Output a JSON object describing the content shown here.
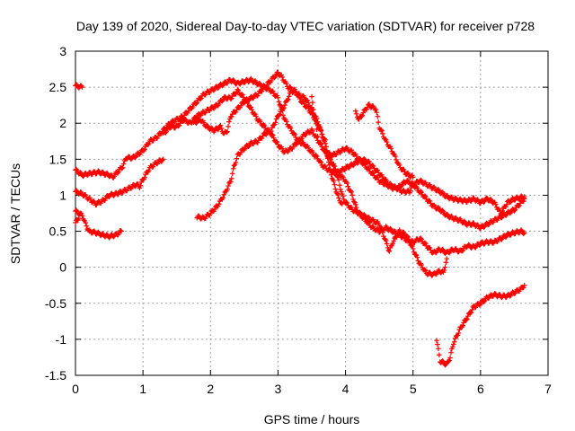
{
  "chart_data": {
    "type": "scatter",
    "title": "Day 139 of 2020, Sidereal Day-to-day VTEC variation (SDTVAR) for receiver p728",
    "xlabel": "GPS time / hours",
    "ylabel": "SDTVAR / TECUs",
    "xlim": [
      0,
      7
    ],
    "ylim": [
      -1.5,
      3
    ],
    "xticks": [
      0,
      1,
      2,
      3,
      4,
      5,
      6,
      7
    ],
    "xtick_labels": [
      "0",
      "1",
      "2",
      "3",
      "4",
      "5",
      "6",
      "7"
    ],
    "yticks": [
      -1.5,
      -1,
      -0.5,
      0,
      0.5,
      1,
      1.5,
      2,
      2.5,
      3
    ],
    "ytick_labels": [
      "-1.5",
      "-1",
      "-0.5",
      "0",
      "0.5",
      "1",
      "1.5",
      "2",
      "2.5",
      "3"
    ],
    "grid": true,
    "marker": "+",
    "color": "#ff0000",
    "series": [
      {
        "name": "trace-1",
        "points": [
          [
            0.0,
            2.52
          ],
          [
            0.1,
            2.5
          ]
        ]
      },
      {
        "name": "trace-2",
        "points": [
          [
            0.0,
            1.35
          ],
          [
            0.1,
            1.28
          ],
          [
            0.2,
            1.3
          ],
          [
            0.35,
            1.32
          ],
          [
            0.5,
            1.28
          ],
          [
            0.55,
            1.25
          ],
          [
            0.6,
            1.3
          ],
          [
            0.7,
            1.4
          ],
          [
            0.75,
            1.52
          ],
          [
            0.85,
            1.52
          ],
          [
            1.0,
            1.62
          ],
          [
            1.1,
            1.75
          ],
          [
            1.2,
            1.8
          ],
          [
            1.3,
            1.9
          ],
          [
            1.4,
            2.0
          ],
          [
            1.5,
            2.05
          ],
          [
            1.6,
            2.1
          ],
          [
            1.7,
            2.2
          ],
          [
            1.8,
            2.3
          ],
          [
            1.9,
            2.4
          ],
          [
            2.0,
            2.45
          ],
          [
            2.1,
            2.5
          ],
          [
            2.2,
            2.55
          ],
          [
            2.3,
            2.6
          ],
          [
            2.4,
            2.55
          ],
          [
            2.5,
            2.58
          ],
          [
            2.6,
            2.6
          ],
          [
            2.7,
            2.55
          ],
          [
            2.8,
            2.5
          ],
          [
            2.9,
            2.45
          ],
          [
            3.0,
            2.35
          ],
          [
            3.05,
            2.2
          ],
          [
            3.1,
            2.05
          ],
          [
            3.2,
            1.9
          ],
          [
            3.3,
            1.75
          ],
          [
            3.4,
            1.7
          ],
          [
            3.5,
            1.6
          ],
          [
            3.6,
            1.5
          ],
          [
            3.65,
            1.42
          ],
          [
            3.75,
            1.35
          ],
          [
            3.85,
            1.3
          ],
          [
            3.95,
            1.35
          ],
          [
            4.05,
            1.4
          ],
          [
            4.15,
            1.45
          ],
          [
            4.25,
            1.5
          ],
          [
            4.35,
            1.45
          ],
          [
            4.45,
            1.35
          ],
          [
            4.55,
            1.25
          ],
          [
            4.65,
            1.15
          ],
          [
            4.75,
            1.1
          ],
          [
            4.85,
            1.05
          ],
          [
            4.95,
            1.05
          ],
          [
            5.0,
            1.15
          ],
          [
            5.1,
            1.2
          ],
          [
            5.2,
            1.15
          ],
          [
            5.3,
            1.1
          ],
          [
            5.4,
            1.05
          ],
          [
            5.5,
            0.98
          ],
          [
            5.6,
            0.95
          ],
          [
            5.7,
            0.93
          ],
          [
            5.8,
            0.92
          ],
          [
            5.9,
            0.95
          ],
          [
            6.0,
            0.9
          ],
          [
            6.1,
            0.95
          ],
          [
            6.2,
            0.9
          ],
          [
            6.3,
            0.75
          ],
          [
            6.4,
            0.9
          ],
          [
            6.5,
            0.95
          ],
          [
            6.65,
            0.98
          ]
        ]
      },
      {
        "name": "trace-3",
        "points": [
          [
            0.0,
            1.05
          ],
          [
            0.1,
            1.02
          ],
          [
            0.2,
            0.95
          ],
          [
            0.3,
            0.88
          ],
          [
            0.4,
            0.92
          ],
          [
            0.5,
            1.0
          ],
          [
            0.6,
            1.02
          ],
          [
            0.7,
            1.05
          ],
          [
            0.8,
            1.1
          ],
          [
            0.9,
            1.15
          ],
          [
            0.95,
            1.12
          ],
          [
            1.0,
            1.22
          ],
          [
            1.1,
            1.38
          ],
          [
            1.2,
            1.45
          ],
          [
            1.3,
            1.5
          ]
        ]
      },
      {
        "name": "trace-4",
        "points": [
          [
            0.0,
            0.78
          ],
          [
            0.1,
            0.72
          ],
          [
            0.15,
            0.6
          ],
          [
            0.2,
            0.5
          ],
          [
            0.3,
            0.48
          ],
          [
            0.4,
            0.45
          ],
          [
            0.5,
            0.43
          ],
          [
            0.6,
            0.45
          ],
          [
            0.68,
            0.5
          ]
        ]
      },
      {
        "name": "trace-5",
        "points": [
          [
            0.0,
            0.62
          ],
          [
            0.05,
            0.68
          ]
        ]
      },
      {
        "name": "trace-6",
        "points": [
          [
            1.3,
            1.85
          ],
          [
            1.4,
            1.95
          ],
          [
            1.5,
            1.95
          ],
          [
            1.6,
            2.05
          ],
          [
            1.7,
            2.0
          ],
          [
            1.8,
            2.1
          ],
          [
            1.9,
            2.15
          ],
          [
            2.0,
            2.2
          ],
          [
            2.1,
            2.25
          ],
          [
            2.2,
            2.35
          ],
          [
            2.3,
            2.35
          ],
          [
            2.4,
            2.45
          ],
          [
            2.5,
            2.35
          ],
          [
            2.6,
            2.2
          ],
          [
            2.7,
            2.05
          ],
          [
            2.8,
            1.95
          ],
          [
            2.9,
            1.85
          ],
          [
            3.0,
            1.7
          ],
          [
            3.1,
            1.6
          ],
          [
            3.2,
            1.65
          ],
          [
            3.3,
            1.75
          ],
          [
            3.4,
            1.85
          ],
          [
            3.5,
            1.9
          ],
          [
            3.6,
            1.75
          ],
          [
            3.7,
            1.6
          ],
          [
            3.8,
            1.45
          ],
          [
            3.9,
            1.3
          ],
          [
            4.0,
            1.2
          ],
          [
            4.1,
            1.0
          ],
          [
            4.15,
            0.85
          ],
          [
            4.2,
            0.75
          ],
          [
            4.3,
            0.65
          ],
          [
            4.4,
            0.55
          ],
          [
            4.5,
            0.5
          ],
          [
            4.6,
            0.55
          ],
          [
            4.7,
            0.5
          ],
          [
            4.8,
            0.45
          ],
          [
            4.9,
            0.38
          ],
          [
            5.0,
            0.35
          ],
          [
            5.1,
            0.4
          ],
          [
            5.2,
            0.3
          ],
          [
            5.3,
            0.2
          ],
          [
            5.4,
            0.25
          ],
          [
            5.5,
            0.2
          ],
          [
            5.6,
            0.25
          ],
          [
            5.7,
            0.22
          ],
          [
            5.8,
            0.3
          ],
          [
            5.9,
            0.28
          ],
          [
            6.0,
            0.33
          ],
          [
            6.1,
            0.35
          ],
          [
            6.2,
            0.35
          ],
          [
            6.3,
            0.4
          ],
          [
            6.4,
            0.45
          ],
          [
            6.5,
            0.48
          ],
          [
            6.6,
            0.5
          ],
          [
            6.65,
            0.48
          ]
        ]
      },
      {
        "name": "trace-7",
        "points": [
          [
            1.75,
            2.0
          ],
          [
            1.85,
            2.05
          ],
          [
            1.95,
            1.95
          ],
          [
            2.05,
            1.9
          ],
          [
            2.15,
            1.95
          ],
          [
            2.2,
            1.85
          ],
          [
            2.25,
            1.9
          ],
          [
            2.3,
            2.1
          ],
          [
            2.4,
            2.2
          ],
          [
            2.5,
            2.3
          ],
          [
            2.6,
            2.35
          ],
          [
            2.7,
            2.4
          ],
          [
            2.8,
            2.5
          ],
          [
            2.9,
            2.6
          ],
          [
            3.0,
            2.7
          ],
          [
            3.05,
            2.65
          ],
          [
            3.15,
            2.5
          ],
          [
            3.25,
            2.45
          ],
          [
            3.35,
            2.3
          ],
          [
            3.45,
            2.2
          ],
          [
            3.55,
            2.05
          ],
          [
            3.6,
            1.75
          ],
          [
            3.7,
            1.6
          ],
          [
            3.8,
            1.55
          ],
          [
            3.9,
            1.6
          ],
          [
            4.0,
            1.65
          ],
          [
            4.1,
            1.6
          ],
          [
            4.2,
            1.5
          ],
          [
            4.3,
            1.4
          ],
          [
            4.4,
            1.3
          ],
          [
            4.5,
            1.2
          ],
          [
            4.6,
            1.15
          ],
          [
            4.7,
            1.1
          ],
          [
            4.8,
            1.12
          ],
          [
            4.9,
            1.2
          ],
          [
            5.0,
            1.15
          ],
          [
            5.1,
            1.05
          ],
          [
            5.2,
            0.95
          ],
          [
            5.3,
            0.85
          ],
          [
            5.4,
            0.8
          ],
          [
            5.5,
            0.72
          ],
          [
            5.6,
            0.68
          ],
          [
            5.7,
            0.65
          ],
          [
            5.8,
            0.6
          ],
          [
            5.9,
            0.6
          ],
          [
            6.0,
            0.55
          ],
          [
            6.1,
            0.6
          ],
          [
            6.2,
            0.65
          ],
          [
            6.3,
            0.7
          ],
          [
            6.4,
            0.75
          ],
          [
            6.5,
            0.8
          ],
          [
            6.6,
            0.9
          ],
          [
            6.65,
            0.95
          ]
        ]
      },
      {
        "name": "trace-8",
        "points": [
          [
            1.8,
            0.7
          ],
          [
            1.9,
            0.68
          ],
          [
            2.0,
            0.75
          ],
          [
            2.1,
            0.85
          ],
          [
            2.2,
            1.0
          ],
          [
            2.3,
            1.2
          ],
          [
            2.35,
            1.4
          ],
          [
            2.4,
            1.55
          ],
          [
            2.5,
            1.65
          ],
          [
            2.6,
            1.72
          ],
          [
            2.7,
            1.75
          ],
          [
            2.8,
            1.85
          ],
          [
            2.9,
            1.9
          ],
          [
            2.95,
            2.0
          ],
          [
            3.0,
            2.1
          ],
          [
            3.1,
            2.25
          ],
          [
            3.15,
            2.35
          ],
          [
            3.2,
            2.45
          ],
          [
            3.3,
            2.4
          ],
          [
            3.4,
            2.35
          ],
          [
            3.5,
            2.2
          ],
          [
            3.6,
            2.0
          ],
          [
            3.7,
            1.7
          ],
          [
            3.8,
            1.45
          ],
          [
            3.9,
            1.2
          ],
          [
            3.95,
            1.0
          ],
          [
            4.0,
            0.9
          ],
          [
            4.1,
            0.8
          ],
          [
            4.2,
            0.75
          ],
          [
            4.3,
            0.7
          ],
          [
            4.4,
            0.65
          ],
          [
            4.5,
            0.6
          ],
          [
            4.55,
            0.48
          ],
          [
            4.6,
            0.35
          ],
          [
            4.65,
            0.22
          ],
          [
            4.7,
            0.35
          ],
          [
            4.8,
            0.5
          ],
          [
            4.9,
            0.45
          ],
          [
            5.0,
            0.25
          ],
          [
            5.1,
            0.05
          ],
          [
            5.2,
            -0.08
          ],
          [
            5.3,
            -0.1
          ],
          [
            5.4,
            -0.05
          ],
          [
            5.45,
            -0.08
          ],
          [
            5.5,
            0.12
          ]
        ]
      },
      {
        "name": "trace-9",
        "points": [
          [
            3.5,
            2.35
          ],
          [
            3.55,
            2.05
          ],
          [
            3.6,
            1.95
          ],
          [
            3.7,
            1.75
          ],
          [
            3.75,
            1.45
          ],
          [
            3.8,
            1.25
          ],
          [
            3.85,
            1.1
          ],
          [
            3.9,
            0.95
          ],
          [
            3.95,
            0.88
          ]
        ]
      },
      {
        "name": "trace-10",
        "points": [
          [
            4.15,
            2.15
          ],
          [
            4.2,
            2.05
          ],
          [
            4.3,
            2.2
          ],
          [
            4.35,
            2.25
          ],
          [
            4.45,
            2.2
          ],
          [
            4.5,
            1.95
          ],
          [
            4.6,
            1.75
          ],
          [
            4.7,
            1.6
          ],
          [
            4.8,
            1.4
          ],
          [
            4.9,
            1.3
          ],
          [
            5.0,
            1.25
          ]
        ]
      },
      {
        "name": "trace-11",
        "points": [
          [
            5.35,
            -1.0
          ],
          [
            5.4,
            -1.3
          ],
          [
            5.5,
            -1.35
          ],
          [
            5.55,
            -1.25
          ],
          [
            5.6,
            -1.05
          ],
          [
            5.7,
            -0.85
          ],
          [
            5.8,
            -0.7
          ],
          [
            5.9,
            -0.55
          ],
          [
            6.0,
            -0.5
          ],
          [
            6.1,
            -0.42
          ],
          [
            6.2,
            -0.38
          ],
          [
            6.3,
            -0.4
          ],
          [
            6.4,
            -0.4
          ],
          [
            6.5,
            -0.35
          ],
          [
            6.6,
            -0.3
          ],
          [
            6.65,
            -0.25
          ]
        ]
      }
    ]
  }
}
